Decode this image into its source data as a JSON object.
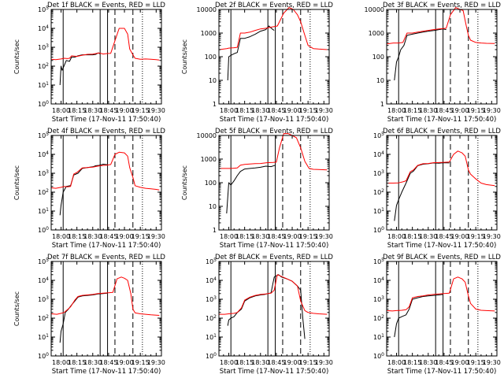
{
  "colors": {
    "events": "#000000",
    "lld": "#ff0000",
    "axes": "#000000",
    "background": "#ffffff"
  },
  "charts": {
    "xlabel": "Start Time (17-Nov-11 17:50:40)",
    "x_ticks": [
      "18:00",
      "18:15",
      "18:30",
      "18:45",
      "19:00",
      "19:15",
      "19:30"
    ],
    "markers": {
      "solid": [
        "18:02",
        "18:37",
        "18:44"
      ],
      "dashed": [
        "18:51",
        "19:08"
      ],
      "dotted": [
        "19:17"
      ]
    },
    "grid": false,
    "legend_placement": "none (described in title)"
  },
  "chart_data": [
    {
      "type": "line",
      "title": "Det 1f BLACK = Events, RED = LLD",
      "ylabel": "Counts/sec",
      "ylim": [
        1,
        100000
      ],
      "y_scale": "log",
      "y_tick_style": "pow10",
      "x_range": [
        "17:50:40",
        "19:35"
      ],
      "series": [
        {
          "name": "BLACK = Events",
          "x": [
            "17:59",
            "18:00",
            "18:01",
            "18:02",
            "18:05",
            "18:08",
            "18:10",
            "18:13",
            "18:16",
            "18:20",
            "18:25",
            "18:30",
            "18:33",
            "18:35",
            "18:37"
          ],
          "y": [
            10,
            100,
            60,
            80,
            200,
            180,
            300,
            300,
            350,
            400,
            400,
            400,
            420,
            500,
            450
          ]
        },
        {
          "name": "RED = LLD",
          "x": [
            "17:51",
            "17:55",
            "18:00",
            "18:03",
            "18:06",
            "18:08",
            "18:10",
            "18:15",
            "18:20",
            "18:25",
            "18:30",
            "18:36",
            "18:40",
            "18:44",
            "18:47",
            "18:50",
            "18:55",
            "19:00",
            "19:03",
            "19:05",
            "19:08",
            "19:10",
            "19:15",
            "19:20",
            "19:25",
            "19:30",
            "19:33"
          ],
          "y": [
            230,
            220,
            240,
            260,
            250,
            260,
            350,
            330,
            380,
            420,
            430,
            500,
            440,
            470,
            480,
            1500,
            10000,
            10000,
            5000,
            800,
            400,
            260,
            230,
            240,
            230,
            220,
            210
          ]
        }
      ]
    },
    {
      "type": "line",
      "title": "Det 2f BLACK = Events, RED = LLD",
      "ylabel": "Counts/sec",
      "ylim": [
        1,
        10000
      ],
      "y_scale": "log",
      "y_tick_style": "plain",
      "x_range": [
        "17:50:40",
        "19:35"
      ],
      "series": [
        {
          "name": "BLACK = Events",
          "x": [
            "17:59",
            "18:00",
            "18:03",
            "18:06",
            "18:08",
            "18:11",
            "18:15",
            "18:20",
            "18:25",
            "18:30",
            "18:35",
            "18:38",
            "18:41",
            "18:43"
          ],
          "y": [
            10,
            100,
            120,
            140,
            150,
            600,
            600,
            700,
            900,
            1200,
            1400,
            2000,
            1500,
            1300
          ]
        },
        {
          "name": "RED = LLD",
          "x": [
            "17:51",
            "17:58",
            "18:00",
            "18:05",
            "18:08",
            "18:11",
            "18:15",
            "18:20",
            "18:25",
            "18:30",
            "18:35",
            "18:41",
            "18:46",
            "18:52",
            "18:57",
            "19:01",
            "19:05",
            "19:08",
            "19:12",
            "19:15",
            "19:20",
            "19:25",
            "19:33"
          ],
          "y": [
            200,
            220,
            230,
            240,
            250,
            1000,
            1000,
            1100,
            1300,
            1500,
            1600,
            1800,
            2000,
            7000,
            12000,
            10000,
            6000,
            3000,
            800,
            300,
            220,
            210,
            200
          ]
        }
      ]
    },
    {
      "type": "line",
      "title": "Det 3f BLACK = Events, RED = LLD",
      "ylabel": "",
      "ylim": [
        1,
        10000
      ],
      "y_scale": "log",
      "y_tick_style": "plain",
      "x_range": [
        "17:50:40",
        "19:35"
      ],
      "series": [
        {
          "name": "BLACK = Events",
          "x": [
            "17:58",
            "18:00",
            "18:02",
            "18:04",
            "18:07",
            "18:10",
            "18:15",
            "18:20",
            "18:25",
            "18:30",
            "18:36",
            "18:40",
            "18:44",
            "18:47"
          ],
          "y": [
            10,
            60,
            100,
            200,
            300,
            800,
            900,
            1000,
            1100,
            1200,
            1300,
            1400,
            1500,
            1400
          ]
        },
        {
          "name": "RED = LLD",
          "x": [
            "17:51",
            "17:57",
            "18:02",
            "18:06",
            "18:10",
            "18:15",
            "18:20",
            "18:25",
            "18:30",
            "18:35",
            "18:40",
            "18:47",
            "18:51",
            "18:56",
            "19:00",
            "19:03",
            "19:06",
            "19:08",
            "19:10",
            "19:15",
            "19:20",
            "19:25",
            "19:33"
          ],
          "y": [
            350,
            380,
            380,
            400,
            1000,
            1000,
            1100,
            1200,
            1300,
            1400,
            1500,
            1600,
            6000,
            12000,
            10000,
            9000,
            2000,
            800,
            500,
            400,
            380,
            370,
            360
          ]
        }
      ]
    },
    {
      "type": "line",
      "title": "Det 4f BLACK = Events, RED = LLD",
      "ylabel": "Counts/sec",
      "ylim": [
        1,
        100000
      ],
      "y_scale": "log",
      "y_tick_style": "pow10",
      "x_range": [
        "17:50:40",
        "19:35"
      ],
      "series": [
        {
          "name": "BLACK = Events",
          "x": [
            "17:59",
            "18:00",
            "18:02",
            "18:05",
            "18:09",
            "18:12",
            "18:16",
            "18:20",
            "18:25",
            "18:30",
            "18:33",
            "18:36",
            "18:40",
            "18:44"
          ],
          "y": [
            6,
            20,
            100,
            200,
            220,
            800,
            1000,
            1800,
            2000,
            2200,
            2500,
            2600,
            3000,
            2800
          ]
        },
        {
          "name": "RED = LLD",
          "x": [
            "17:51",
            "17:55",
            "18:00",
            "18:03",
            "18:06",
            "18:09",
            "18:12",
            "18:15",
            "18:20",
            "18:25",
            "18:30",
            "18:35",
            "18:40",
            "18:44",
            "18:47",
            "18:51",
            "18:55",
            "19:00",
            "19:03",
            "19:05",
            "19:08",
            "19:10",
            "19:15",
            "19:20",
            "19:25",
            "19:30",
            "19:33"
          ],
          "y": [
            170,
            160,
            180,
            200,
            190,
            200,
            900,
            1100,
            1900,
            2000,
            2100,
            2400,
            2600,
            2700,
            2900,
            10000,
            13000,
            12000,
            8000,
            2000,
            600,
            220,
            180,
            160,
            150,
            140,
            130
          ]
        }
      ]
    },
    {
      "type": "line",
      "title": "Det 5f BLACK = Events, RED = LLD",
      "ylabel": "Counts/sec",
      "ylim": [
        1,
        10000
      ],
      "y_scale": "log",
      "y_tick_style": "plain",
      "x_range": [
        "17:50:40",
        "19:35"
      ],
      "series": [
        {
          "name": "BLACK = Events",
          "x": [
            "17:58",
            "18:00",
            "18:02",
            "18:05",
            "18:08",
            "18:11",
            "18:15",
            "18:20",
            "18:25",
            "18:30",
            "18:35",
            "18:40",
            "18:44"
          ],
          "y": [
            5,
            100,
            80,
            120,
            200,
            300,
            380,
            400,
            420,
            450,
            500,
            480,
            550
          ]
        },
        {
          "name": "RED = LLD",
          "x": [
            "17:51",
            "17:58",
            "18:02",
            "18:05",
            "18:08",
            "18:11",
            "18:15",
            "18:20",
            "18:25",
            "18:30",
            "18:36",
            "18:42",
            "18:45",
            "18:48",
            "18:52",
            "18:56",
            "19:00",
            "19:04",
            "19:08",
            "19:12",
            "19:16",
            "19:20",
            "19:25",
            "19:33"
          ],
          "y": [
            400,
            400,
            400,
            410,
            420,
            550,
            600,
            620,
            640,
            650,
            700,
            720,
            740,
            3000,
            12000,
            12000,
            10000,
            8000,
            3000,
            800,
            400,
            370,
            360,
            350
          ]
        }
      ]
    },
    {
      "type": "line",
      "title": "Det 6f BLACK = Events, RED = LLD",
      "ylabel": "",
      "ylim": [
        1,
        100000
      ],
      "y_scale": "log",
      "y_tick_style": "pow10",
      "x_range": [
        "17:50:40",
        "19:35"
      ],
      "series": [
        {
          "name": "BLACK = Events",
          "x": [
            "17:58",
            "18:00",
            "18:02",
            "18:05",
            "18:09",
            "18:13",
            "18:16",
            "18:20",
            "18:25",
            "18:30",
            "18:35",
            "18:40",
            "18:45",
            "18:50"
          ],
          "y": [
            3,
            20,
            40,
            100,
            300,
            1000,
            1300,
            2500,
            3000,
            3200,
            3500,
            3400,
            3600,
            3500
          ]
        },
        {
          "name": "RED = LLD",
          "x": [
            "17:51",
            "17:57",
            "18:02",
            "18:06",
            "18:09",
            "18:13",
            "18:16",
            "18:20",
            "18:25",
            "18:30",
            "18:35",
            "18:40",
            "18:45",
            "18:50",
            "18:54",
            "18:58",
            "19:02",
            "19:05",
            "19:08",
            "19:10",
            "19:15",
            "19:20",
            "19:25",
            "19:33"
          ],
          "y": [
            300,
            300,
            310,
            350,
            400,
            1200,
            1500,
            2600,
            3200,
            3300,
            3600,
            3700,
            3800,
            3900,
            10000,
            15000,
            12000,
            8000,
            1500,
            900,
            500,
            300,
            250,
            220
          ]
        }
      ]
    },
    {
      "type": "line",
      "title": "Det 7f BLACK = Events, RED = LLD",
      "ylabel": "Counts/sec",
      "ylim": [
        1,
        100000
      ],
      "y_scale": "log",
      "y_tick_style": "pow10",
      "x_range": [
        "17:50:40",
        "19:35"
      ],
      "series": [
        {
          "name": "BLACK = Events",
          "x": [
            "17:59",
            "18:00",
            "18:02",
            "18:04",
            "18:07",
            "18:10",
            "18:13",
            "18:16",
            "18:20",
            "18:25",
            "18:30",
            "18:35",
            "18:40",
            "18:44"
          ],
          "y": [
            5,
            20,
            50,
            200,
            300,
            500,
            800,
            1300,
            1500,
            1600,
            1700,
            1900,
            2000,
            2100
          ]
        },
        {
          "name": "RED = LLD",
          "x": [
            "17:51",
            "17:56",
            "18:00",
            "18:03",
            "18:06",
            "18:09",
            "18:13",
            "18:16",
            "18:20",
            "18:25",
            "18:30",
            "18:35",
            "18:40",
            "18:45",
            "18:49",
            "18:53",
            "18:57",
            "19:00",
            "19:03",
            "19:06",
            "19:08",
            "19:10",
            "19:15",
            "19:20",
            "19:25",
            "19:33"
          ],
          "y": [
            170,
            160,
            180,
            200,
            280,
            400,
            900,
            1400,
            1600,
            1700,
            1800,
            2000,
            2100,
            2200,
            2300,
            12000,
            15000,
            13000,
            10000,
            2000,
            300,
            190,
            170,
            160,
            150,
            140
          ]
        }
      ]
    },
    {
      "type": "line",
      "title": "Det 8f BLACK = Events, RED = LLD",
      "ylabel": "",
      "ylim": [
        1,
        100000
      ],
      "y_scale": "log",
      "y_tick_style": "pow10",
      "x_range": [
        "17:50:40",
        "19:35"
      ],
      "series": [
        {
          "name": "BLACK = Events",
          "x": [
            "17:59",
            "18:00",
            "18:02",
            "18:05",
            "18:08",
            "18:12",
            "18:15",
            "18:20",
            "18:25",
            "18:30",
            "18:34",
            "18:37",
            "18:40",
            "18:43",
            "18:47",
            "18:50",
            "18:55",
            "19:00",
            "19:05",
            "19:08",
            "19:10",
            "19:12"
          ],
          "y": [
            40,
            80,
            100,
            120,
            200,
            300,
            800,
            1200,
            1500,
            1700,
            1800,
            2000,
            2200,
            15000,
            20000,
            15000,
            12000,
            9000,
            5000,
            3000,
            100,
            8
          ]
        },
        {
          "name": "RED = LLD",
          "x": [
            "17:51",
            "17:56",
            "18:00",
            "18:05",
            "18:08",
            "18:12",
            "18:15",
            "18:20",
            "18:25",
            "18:30",
            "18:35",
            "18:40",
            "18:43",
            "18:46",
            "18:50",
            "18:55",
            "19:00",
            "19:05",
            "19:08",
            "19:12",
            "19:15",
            "19:20",
            "19:25",
            "19:33"
          ],
          "y": [
            160,
            160,
            170,
            180,
            200,
            350,
            900,
            1300,
            1600,
            1800,
            1900,
            2100,
            3000,
            20000,
            16000,
            12000,
            9000,
            5000,
            800,
            250,
            200,
            180,
            170,
            160
          ]
        }
      ]
    },
    {
      "type": "line",
      "title": "Det 9f BLACK = Events, RED = LLD",
      "ylabel": "",
      "ylim": [
        1,
        100000
      ],
      "y_scale": "log",
      "y_tick_style": "pow10",
      "x_range": [
        "17:50:40",
        "19:35"
      ],
      "series": [
        {
          "name": "BLACK = Events",
          "x": [
            "17:58",
            "18:00",
            "18:02",
            "18:05",
            "18:09",
            "18:12",
            "18:15",
            "18:20",
            "18:25",
            "18:30",
            "18:35",
            "18:40",
            "18:44"
          ],
          "y": [
            10,
            50,
            100,
            120,
            150,
            300,
            1000,
            1200,
            1400,
            1500,
            1600,
            1700,
            1800
          ]
        },
        {
          "name": "RED = LLD",
          "x": [
            "17:51",
            "17:56",
            "18:00",
            "18:05",
            "18:09",
            "18:12",
            "18:15",
            "18:20",
            "18:25",
            "18:30",
            "18:35",
            "18:40",
            "18:45",
            "18:50",
            "18:54",
            "18:58",
            "19:02",
            "19:05",
            "19:08",
            "19:10",
            "19:15",
            "19:20",
            "19:25",
            "19:33"
          ],
          "y": [
            250,
            240,
            250,
            260,
            280,
            400,
            1200,
            1400,
            1500,
            1700,
            1800,
            1900,
            2000,
            2100,
            12000,
            15000,
            12000,
            8000,
            1500,
            600,
            300,
            260,
            250,
            240
          ]
        }
      ]
    }
  ]
}
